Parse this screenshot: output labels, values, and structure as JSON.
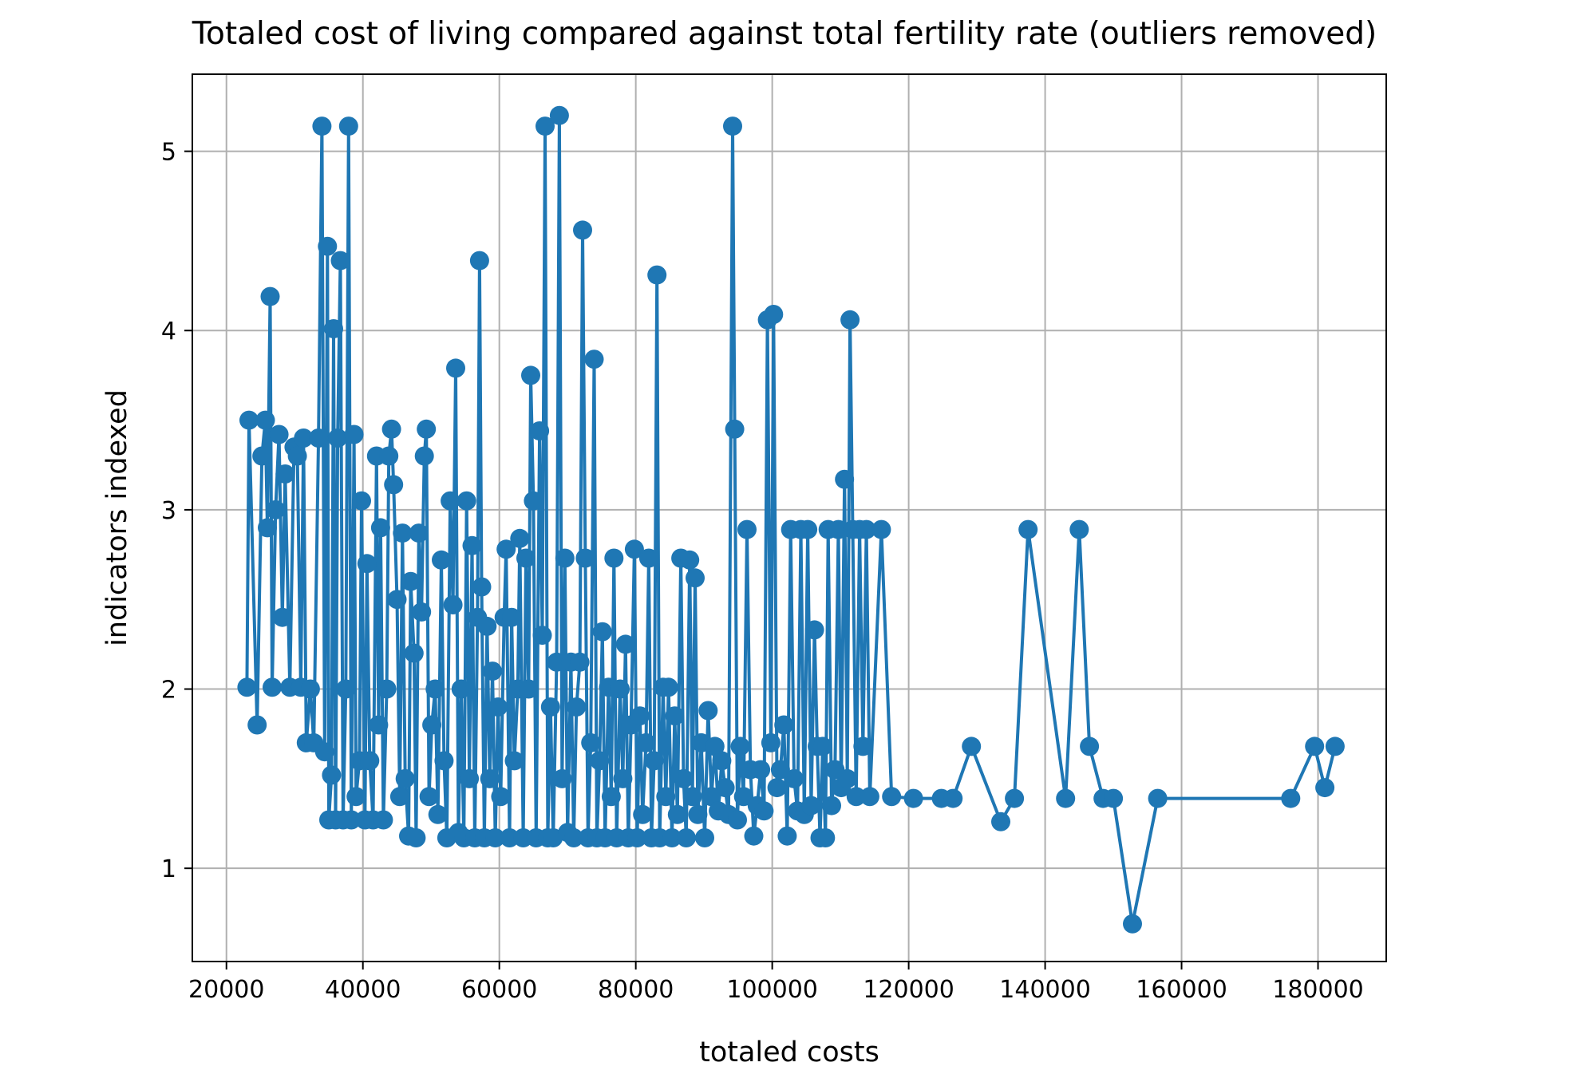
{
  "chart_data": {
    "type": "line",
    "title": "Totaled cost of living compared against total fertility rate (outliers removed)",
    "xlabel": "totaled costs",
    "ylabel": "indicators indexed",
    "xlim": [
      15000,
      190000
    ],
    "ylim": [
      0.48,
      5.43
    ],
    "xticks": [
      20000,
      40000,
      60000,
      80000,
      100000,
      120000,
      140000,
      160000,
      180000
    ],
    "xtick_labels": [
      "20000",
      "40000",
      "60000",
      "80000",
      "100000",
      "120000",
      "140000",
      "160000",
      "180000"
    ],
    "yticks": [
      1,
      2,
      3,
      4,
      5
    ],
    "ytick_labels": [
      "1",
      "2",
      "3",
      "4",
      "5"
    ],
    "grid": true,
    "marker": "circle",
    "series": [
      {
        "color": "#1f77b4",
        "points": [
          [
            23000,
            2.01
          ],
          [
            23300,
            3.5
          ],
          [
            24500,
            1.8
          ],
          [
            25200,
            3.3
          ],
          [
            25700,
            3.5
          ],
          [
            26000,
            2.9
          ],
          [
            26400,
            4.19
          ],
          [
            26700,
            2.01
          ],
          [
            27200,
            3.0
          ],
          [
            27700,
            3.42
          ],
          [
            28200,
            2.4
          ],
          [
            28600,
            3.2
          ],
          [
            29300,
            2.01
          ],
          [
            29900,
            3.35
          ],
          [
            30400,
            3.3
          ],
          [
            30900,
            2.01
          ],
          [
            31300,
            3.4
          ],
          [
            31700,
            1.7
          ],
          [
            32300,
            2.0
          ],
          [
            32800,
            1.7
          ],
          [
            33500,
            3.4
          ],
          [
            34000,
            5.14
          ],
          [
            34400,
            1.65
          ],
          [
            34800,
            4.47
          ],
          [
            35000,
            1.27
          ],
          [
            35400,
            1.52
          ],
          [
            35700,
            4.01
          ],
          [
            36000,
            1.27
          ],
          [
            36300,
            3.4
          ],
          [
            36700,
            4.39
          ],
          [
            37100,
            1.27
          ],
          [
            37500,
            2.0
          ],
          [
            37900,
            5.14
          ],
          [
            38300,
            1.27
          ],
          [
            38700,
            3.42
          ],
          [
            39000,
            1.4
          ],
          [
            39500,
            1.6
          ],
          [
            39800,
            3.05
          ],
          [
            40300,
            1.27
          ],
          [
            40600,
            2.7
          ],
          [
            41000,
            1.6
          ],
          [
            41500,
            1.27
          ],
          [
            42000,
            3.3
          ],
          [
            42300,
            1.8
          ],
          [
            42600,
            2.9
          ],
          [
            43000,
            1.27
          ],
          [
            43500,
            2.0
          ],
          [
            43800,
            3.3
          ],
          [
            44200,
            3.45
          ],
          [
            44500,
            3.14
          ],
          [
            45000,
            2.5
          ],
          [
            45400,
            1.4
          ],
          [
            45800,
            2.87
          ],
          [
            46200,
            1.5
          ],
          [
            46700,
            1.18
          ],
          [
            47000,
            2.6
          ],
          [
            47500,
            2.2
          ],
          [
            47800,
            1.17
          ],
          [
            48200,
            2.87
          ],
          [
            48600,
            2.43
          ],
          [
            49000,
            3.3
          ],
          [
            49300,
            3.45
          ],
          [
            49700,
            1.4
          ],
          [
            50100,
            1.8
          ],
          [
            50600,
            2.0
          ],
          [
            51000,
            1.3
          ],
          [
            51500,
            2.72
          ],
          [
            51900,
            1.6
          ],
          [
            52300,
            1.17
          ],
          [
            52800,
            3.05
          ],
          [
            53200,
            2.47
          ],
          [
            53600,
            3.79
          ],
          [
            54000,
            1.2
          ],
          [
            54400,
            2.0
          ],
          [
            54800,
            1.17
          ],
          [
            55200,
            3.05
          ],
          [
            55600,
            1.5
          ],
          [
            56000,
            2.8
          ],
          [
            56400,
            1.17
          ],
          [
            56800,
            2.4
          ],
          [
            57100,
            4.39
          ],
          [
            57400,
            2.57
          ],
          [
            57800,
            1.17
          ],
          [
            58200,
            2.35
          ],
          [
            58600,
            1.5
          ],
          [
            59000,
            2.1
          ],
          [
            59400,
            1.17
          ],
          [
            59800,
            1.9
          ],
          [
            60200,
            1.4
          ],
          [
            60700,
            2.4
          ],
          [
            61000,
            2.78
          ],
          [
            61500,
            1.17
          ],
          [
            61800,
            2.4
          ],
          [
            62200,
            1.6
          ],
          [
            62700,
            2.0
          ],
          [
            63000,
            2.84
          ],
          [
            63500,
            1.17
          ],
          [
            63900,
            2.73
          ],
          [
            64300,
            2.0
          ],
          [
            64600,
            3.75
          ],
          [
            65000,
            3.05
          ],
          [
            65400,
            1.17
          ],
          [
            65900,
            3.44
          ],
          [
            66300,
            2.3
          ],
          [
            66700,
            5.14
          ],
          [
            67100,
            1.17
          ],
          [
            67500,
            1.9
          ],
          [
            67900,
            1.17
          ],
          [
            68400,
            2.15
          ],
          [
            68800,
            5.2
          ],
          [
            69200,
            1.5
          ],
          [
            69600,
            2.73
          ],
          [
            70000,
            1.2
          ],
          [
            70500,
            2.15
          ],
          [
            70900,
            1.17
          ],
          [
            71300,
            1.9
          ],
          [
            71800,
            2.15
          ],
          [
            72200,
            4.56
          ],
          [
            72600,
            2.73
          ],
          [
            73000,
            1.17
          ],
          [
            73400,
            1.7
          ],
          [
            73900,
            3.84
          ],
          [
            74300,
            1.17
          ],
          [
            74700,
            1.6
          ],
          [
            75100,
            2.32
          ],
          [
            75500,
            1.17
          ],
          [
            76000,
            2.01
          ],
          [
            76400,
            1.4
          ],
          [
            76800,
            2.73
          ],
          [
            77200,
            1.17
          ],
          [
            77700,
            2.0
          ],
          [
            78100,
            1.5
          ],
          [
            78500,
            2.25
          ],
          [
            78900,
            1.17
          ],
          [
            79300,
            1.8
          ],
          [
            79800,
            2.78
          ],
          [
            80200,
            1.17
          ],
          [
            80600,
            1.85
          ],
          [
            81000,
            1.3
          ],
          [
            81500,
            1.7
          ],
          [
            81900,
            2.73
          ],
          [
            82300,
            1.17
          ],
          [
            82700,
            1.6
          ],
          [
            83100,
            4.31
          ],
          [
            83500,
            1.17
          ],
          [
            84000,
            2.01
          ],
          [
            84400,
            1.4
          ],
          [
            84800,
            2.01
          ],
          [
            85300,
            1.17
          ],
          [
            85700,
            1.85
          ],
          [
            86100,
            1.3
          ],
          [
            86600,
            2.73
          ],
          [
            87000,
            1.5
          ],
          [
            87400,
            1.17
          ],
          [
            87900,
            2.72
          ],
          [
            88300,
            1.4
          ],
          [
            88700,
            2.62
          ],
          [
            89100,
            1.3
          ],
          [
            89600,
            1.7
          ],
          [
            90100,
            1.17
          ],
          [
            90600,
            1.88
          ],
          [
            91100,
            1.4
          ],
          [
            91600,
            1.68
          ],
          [
            92100,
            1.32
          ],
          [
            92600,
            1.6
          ],
          [
            93100,
            1.45
          ],
          [
            93600,
            1.3
          ],
          [
            94200,
            5.14
          ],
          [
            94500,
            3.45
          ],
          [
            94900,
            1.27
          ],
          [
            95300,
            1.68
          ],
          [
            95800,
            1.4
          ],
          [
            96300,
            2.89
          ],
          [
            96800,
            1.55
          ],
          [
            97300,
            1.18
          ],
          [
            97800,
            1.35
          ],
          [
            98300,
            1.55
          ],
          [
            98800,
            1.32
          ],
          [
            99300,
            4.06
          ],
          [
            99800,
            1.7
          ],
          [
            100200,
            4.09
          ],
          [
            100700,
            1.45
          ],
          [
            101200,
            1.55
          ],
          [
            101700,
            1.8
          ],
          [
            102200,
            1.18
          ],
          [
            102700,
            2.89
          ],
          [
            103200,
            1.5
          ],
          [
            103700,
            1.32
          ],
          [
            104200,
            2.89
          ],
          [
            104700,
            1.3
          ],
          [
            105200,
            2.89
          ],
          [
            105700,
            1.35
          ],
          [
            106200,
            2.33
          ],
          [
            106600,
            1.68
          ],
          [
            107000,
            1.17
          ],
          [
            107400,
            1.68
          ],
          [
            107800,
            1.17
          ],
          [
            108200,
            2.89
          ],
          [
            108700,
            1.35
          ],
          [
            109200,
            1.55
          ],
          [
            109700,
            2.89
          ],
          [
            110100,
            1.45
          ],
          [
            110600,
            3.17
          ],
          [
            111000,
            1.5
          ],
          [
            111400,
            4.06
          ],
          [
            111800,
            2.89
          ],
          [
            112300,
            1.4
          ],
          [
            112800,
            2.89
          ],
          [
            113300,
            1.68
          ],
          [
            113800,
            2.89
          ],
          [
            114300,
            1.4
          ],
          [
            116000,
            2.89
          ],
          [
            117500,
            1.4
          ],
          [
            120700,
            1.39
          ],
          [
            124800,
            1.39
          ],
          [
            126500,
            1.39
          ],
          [
            129200,
            1.68
          ],
          [
            133500,
            1.26
          ],
          [
            135500,
            1.39
          ],
          [
            137500,
            2.89
          ],
          [
            143000,
            1.39
          ],
          [
            145000,
            2.89
          ],
          [
            146500,
            1.68
          ],
          [
            148500,
            1.39
          ],
          [
            150000,
            1.39
          ],
          [
            152800,
            0.69
          ],
          [
            156500,
            1.39
          ],
          [
            176000,
            1.39
          ],
          [
            179500,
            1.68
          ],
          [
            181000,
            1.45
          ],
          [
            182500,
            1.68
          ]
        ]
      }
    ]
  }
}
